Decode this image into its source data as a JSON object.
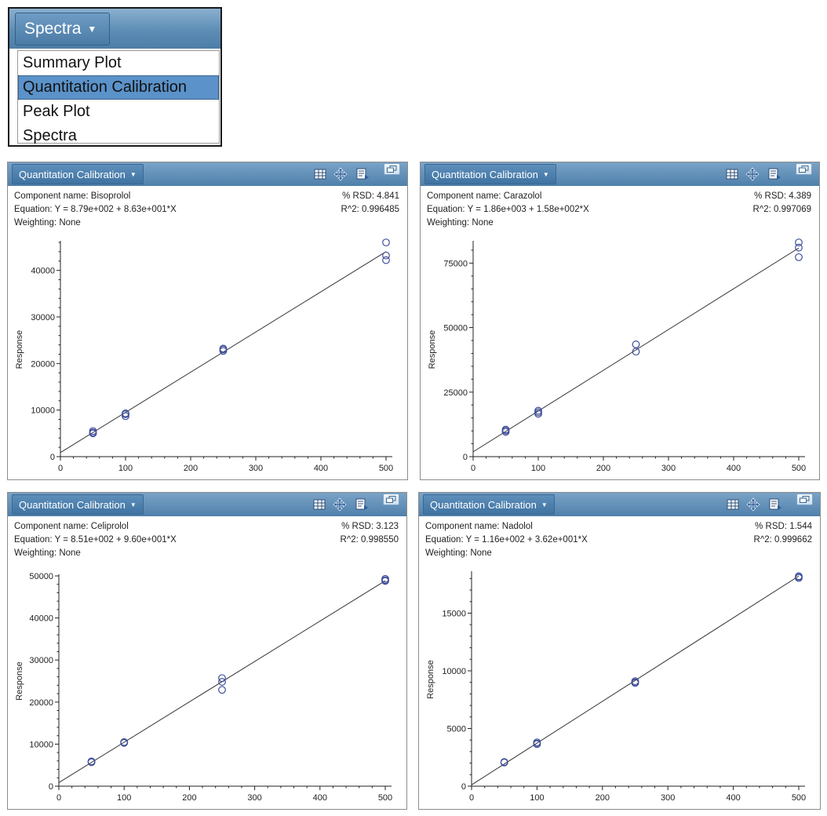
{
  "menu": {
    "button_label": "Spectra",
    "items": [
      {
        "label": "Summary Plot",
        "selected": false
      },
      {
        "label": "Quantitation Calibration",
        "selected": true
      },
      {
        "label": "Peak Plot",
        "selected": false
      },
      {
        "label": "Spectra",
        "selected": false
      }
    ]
  },
  "panels": [
    {
      "header_label": "Quantitation Calibration",
      "component": "Component name: Bisoprolol",
      "equation": "Equation: Y = 8.79e+002 + 8.63e+001*X",
      "weighting": "Weighting: None",
      "rsd": "% RSD: 4.841",
      "r2": "R^2: 0.996485"
    },
    {
      "header_label": "Quantitation Calibration",
      "component": "Component name: Carazolol",
      "equation": "Equation: Y = 1.86e+003 + 1.58e+002*X",
      "weighting": "Weighting: None",
      "rsd": "% RSD: 4.389",
      "r2": "R^2: 0.997069"
    },
    {
      "header_label": "Quantitation Calibration",
      "component": "Component name: Celiprolol",
      "equation": "Equation: Y = 8.51e+002 + 9.60e+001*X",
      "weighting": "Weighting: None",
      "rsd": "% RSD: 3.123",
      "r2": "R^2: 0.998550"
    },
    {
      "header_label": "Quantitation Calibration",
      "component": "Component name: Nadolol",
      "equation": "Equation: Y = 1.16e+002 + 3.62e+001*X",
      "weighting": "Weighting: None",
      "rsd": "% RSD: 1.544",
      "r2": "R^2: 0.999662"
    }
  ],
  "colors": {
    "marker": "#3f4f9a",
    "fit_line": "#333333",
    "header_blue": "#4f80ab"
  },
  "icons": [
    "table-icon",
    "move-icon",
    "export-icon",
    "restore-icon"
  ],
  "chart_data": [
    {
      "type": "scatter",
      "ylabel": "Response",
      "xlim": [
        0,
        500
      ],
      "ylim": [
        0,
        46000
      ],
      "xticks": [
        0,
        100,
        200,
        300,
        400,
        500
      ],
      "yticks": [
        0,
        10000,
        20000,
        30000,
        40000
      ],
      "fit": {
        "intercept": 879,
        "slope": 86.3
      },
      "points": [
        [
          50,
          5500
        ],
        [
          50,
          5000
        ],
        [
          50,
          5200
        ],
        [
          100,
          9300
        ],
        [
          100,
          8700
        ],
        [
          100,
          9100
        ],
        [
          250,
          23200
        ],
        [
          250,
          22700
        ],
        [
          250,
          23000
        ],
        [
          500,
          46000
        ],
        [
          500,
          43200
        ],
        [
          500,
          42200
        ]
      ]
    },
    {
      "type": "scatter",
      "ylabel": "Response",
      "xlim": [
        0,
        500
      ],
      "ylim": [
        0,
        83000
      ],
      "xticks": [
        0,
        100,
        200,
        300,
        400,
        500
      ],
      "yticks": [
        0,
        25000,
        50000,
        75000
      ],
      "fit": {
        "intercept": 1860,
        "slope": 158
      },
      "points": [
        [
          50,
          10500
        ],
        [
          50,
          9600
        ],
        [
          50,
          10100
        ],
        [
          100,
          17800
        ],
        [
          100,
          16600
        ],
        [
          100,
          17200
        ],
        [
          250,
          43500
        ],
        [
          250,
          40700
        ],
        [
          500,
          83000
        ],
        [
          500,
          81000
        ],
        [
          500,
          77300
        ]
      ]
    },
    {
      "type": "scatter",
      "ylabel": "Response",
      "xlim": [
        0,
        500
      ],
      "ylim": [
        0,
        50000
      ],
      "xticks": [
        0,
        100,
        200,
        300,
        400,
        500
      ],
      "yticks": [
        0,
        10000,
        20000,
        30000,
        40000,
        50000
      ],
      "fit": {
        "intercept": 851,
        "slope": 96.0
      },
      "points": [
        [
          50,
          5900
        ],
        [
          50,
          5700
        ],
        [
          50,
          5800
        ],
        [
          100,
          10500
        ],
        [
          100,
          10300
        ],
        [
          100,
          10400
        ],
        [
          250,
          25700
        ],
        [
          250,
          24800
        ],
        [
          250,
          22900
        ],
        [
          500,
          49300
        ],
        [
          500,
          48800
        ],
        [
          500,
          49000
        ]
      ]
    },
    {
      "type": "scatter",
      "ylabel": "Response",
      "xlim": [
        0,
        500
      ],
      "ylim": [
        0,
        18500
      ],
      "xticks": [
        0,
        100,
        200,
        300,
        400,
        500
      ],
      "yticks": [
        0,
        5000,
        10000,
        15000
      ],
      "fit": {
        "intercept": 116,
        "slope": 36.2
      },
      "points": [
        [
          50,
          2100
        ],
        [
          50,
          2050
        ],
        [
          100,
          3800
        ],
        [
          100,
          3650
        ],
        [
          100,
          3700
        ],
        [
          250,
          9100
        ],
        [
          250,
          8950
        ],
        [
          250,
          9000
        ],
        [
          500,
          18200
        ],
        [
          500,
          18050
        ],
        [
          500,
          18150
        ]
      ]
    }
  ]
}
